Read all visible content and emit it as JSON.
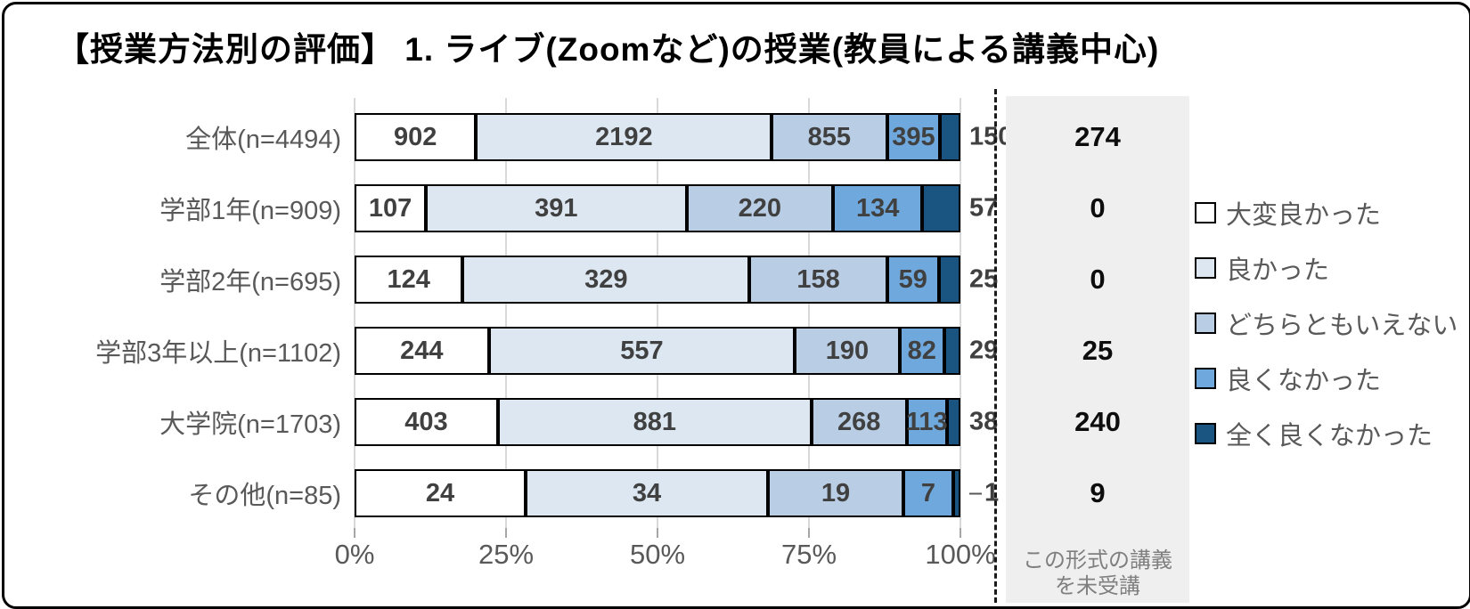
{
  "title": "【授業方法別の評価】 1. ライブ(Zoomなど)の授業(教員による講義中心)",
  "legend": [
    {
      "label": "大変良かった",
      "color": "#FFFFFF"
    },
    {
      "label": "良かった",
      "color": "#DCE7F2"
    },
    {
      "label": "どちらともいえない",
      "color": "#B9CDE5"
    },
    {
      "label": "良くなかった",
      "color": "#6FA8DC"
    },
    {
      "label": "全く良くなかった",
      "color": "#1A5480"
    }
  ],
  "axis": {
    "ticks": [
      "0%",
      "25%",
      "50%",
      "75%",
      "100%"
    ]
  },
  "unattended": {
    "caption_line1": "この形式の講義",
    "caption_line2": "を未受講",
    "values": [
      274,
      0,
      0,
      25,
      240,
      9
    ]
  },
  "colors": {
    "grid": "#d9d9d9",
    "axis_text": "#595959",
    "number_text": "#404040",
    "panel_bg": "#efefef",
    "panel_caption": "#7f7f7f",
    "bar_border": "#000000"
  },
  "chart_data": {
    "type": "bar",
    "subtype": "horizontal-100pct-stacked",
    "title": "【授業方法別の評価】 1. ライブ(Zoomなど)の授業(教員による講義中心)",
    "categories": [
      "全体(n=4494)",
      "学部1年(n=909)",
      "学部2年(n=695)",
      "学部3年以上(n=1102)",
      "大学院(n=1703)",
      "その他(n=85)"
    ],
    "series": [
      {
        "name": "大変良かった",
        "color": "#FFFFFF",
        "values": [
          902,
          107,
          124,
          244,
          403,
          24
        ]
      },
      {
        "name": "良かった",
        "color": "#DCE7F2",
        "values": [
          2192,
          391,
          329,
          557,
          881,
          34
        ]
      },
      {
        "name": "どちらともいえない",
        "color": "#B9CDE5",
        "values": [
          855,
          220,
          158,
          190,
          268,
          19
        ]
      },
      {
        "name": "良くなかった",
        "color": "#6FA8DC",
        "values": [
          395,
          134,
          59,
          82,
          113,
          7
        ]
      },
      {
        "name": "全く良くなかった",
        "color": "#1A5480",
        "values": [
          150,
          57,
          25,
          29,
          38,
          1
        ]
      }
    ],
    "extra_column": {
      "label": "この形式の講義を未受講",
      "values": [
        274,
        0,
        0,
        25,
        240,
        9
      ]
    },
    "xlabel": "",
    "ylabel": "",
    "x_ticks": [
      "0%",
      "25%",
      "50%",
      "75%",
      "100%"
    ],
    "xlim": [
      0,
      100
    ],
    "grid": true,
    "legend_position": "right",
    "data_labels": "inside-segments, last-series-outside"
  }
}
